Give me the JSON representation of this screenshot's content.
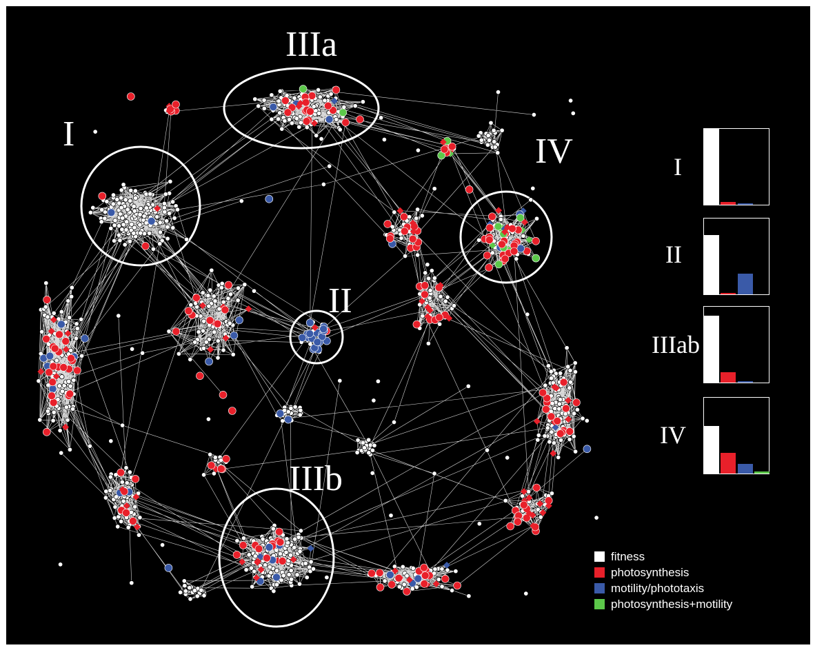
{
  "colors": {
    "background": "#000000",
    "fitness": "#ffffff",
    "photosynthesis": "#e8202a",
    "motility": "#3a5aa8",
    "both": "#5cc84a"
  },
  "cluster_labels": {
    "I": "I",
    "II": "II",
    "IIIa": "IIIa",
    "IIIb": "IIIb",
    "IV": "IV"
  },
  "panels": [
    {
      "label": "I",
      "fitness": 1.0,
      "photosynthesis": 0.04,
      "motility": 0.02,
      "both": 0.0
    },
    {
      "label": "II",
      "fitness": 0.78,
      "photosynthesis": 0.02,
      "motility": 0.27,
      "both": 0.0
    },
    {
      "label": "IIIab",
      "fitness": 0.88,
      "photosynthesis": 0.14,
      "motility": 0.02,
      "both": 0.0
    },
    {
      "label": "IV",
      "fitness": 0.63,
      "photosynthesis": 0.27,
      "motility": 0.13,
      "both": 0.03
    }
  ],
  "legend": {
    "fitness": "fitness",
    "photosynthesis": "photosynthesis",
    "motility": "motility/phototaxis",
    "both": "photosynthesis+motility"
  }
}
